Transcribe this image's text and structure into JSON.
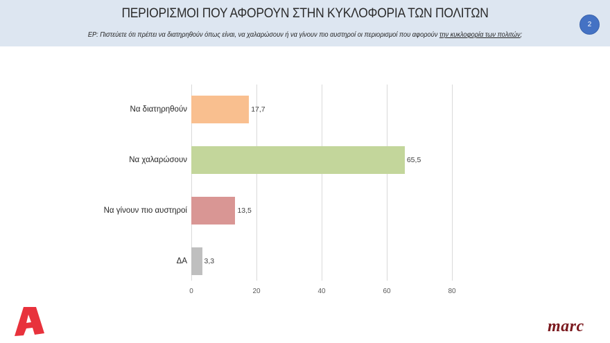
{
  "header": {
    "title": "ΠΕΡΙΟΡΙΣΜΟΙ ΠΟΥ ΑΦΟΡΟΥΝ ΣΤΗΝ ΚΥΚΛΟΦΟΡΙΑ ΤΩΝ ΠΟΛΙΤΩΝ",
    "question_prefix": "ΕΡ:  Πιστεύετε ότι πρέπει  να διατηρηθούν όπως είναι, να χαλαρώσουν ή να γίνουν πιο αυστηροί  οι περιορισμοί που αφορούν ",
    "question_underlined": "την κυκλοφορία των πολιτών",
    "question_suffix": ";",
    "page_number": "2"
  },
  "colors": {
    "header_bg": "#dde6f1",
    "badge": "#4472c4",
    "bar_maintain": "#f9bf8f",
    "bar_relax": "#c3d69b",
    "bar_stricter": "#d99694",
    "bar_dk": "#bfbfbf",
    "alpha_logo": "#e8323c",
    "marc_logo": "#7b1a1f"
  },
  "logos": {
    "left": "Alpha",
    "right": "marc"
  },
  "chart_data": {
    "type": "bar",
    "orientation": "horizontal",
    "title": "ΠΕΡΙΟΡΙΣΜΟΙ ΠΟΥ ΑΦΟΡΟΥΝ ΣΤΗΝ ΚΥΚΛΟΦΟΡΙΑ ΤΩΝ ΠΟΛΙΤΩΝ",
    "categories": [
      "Να διατηρηθούν",
      "Να χαλαρώσουν",
      "Να γίνουν πιο αυστηροί",
      "ΔΑ"
    ],
    "values": [
      17.7,
      65.5,
      13.5,
      3.3
    ],
    "value_labels": [
      "17,7",
      "65,5",
      "13,5",
      "3,3"
    ],
    "colors": [
      "#f9bf8f",
      "#c3d69b",
      "#d99694",
      "#bfbfbf"
    ],
    "xlabel": "",
    "ylabel": "",
    "xlim": [
      0,
      80
    ],
    "x_ticks": [
      "0",
      "20",
      "40",
      "60",
      "80"
    ],
    "grid": true,
    "legend": "none"
  }
}
